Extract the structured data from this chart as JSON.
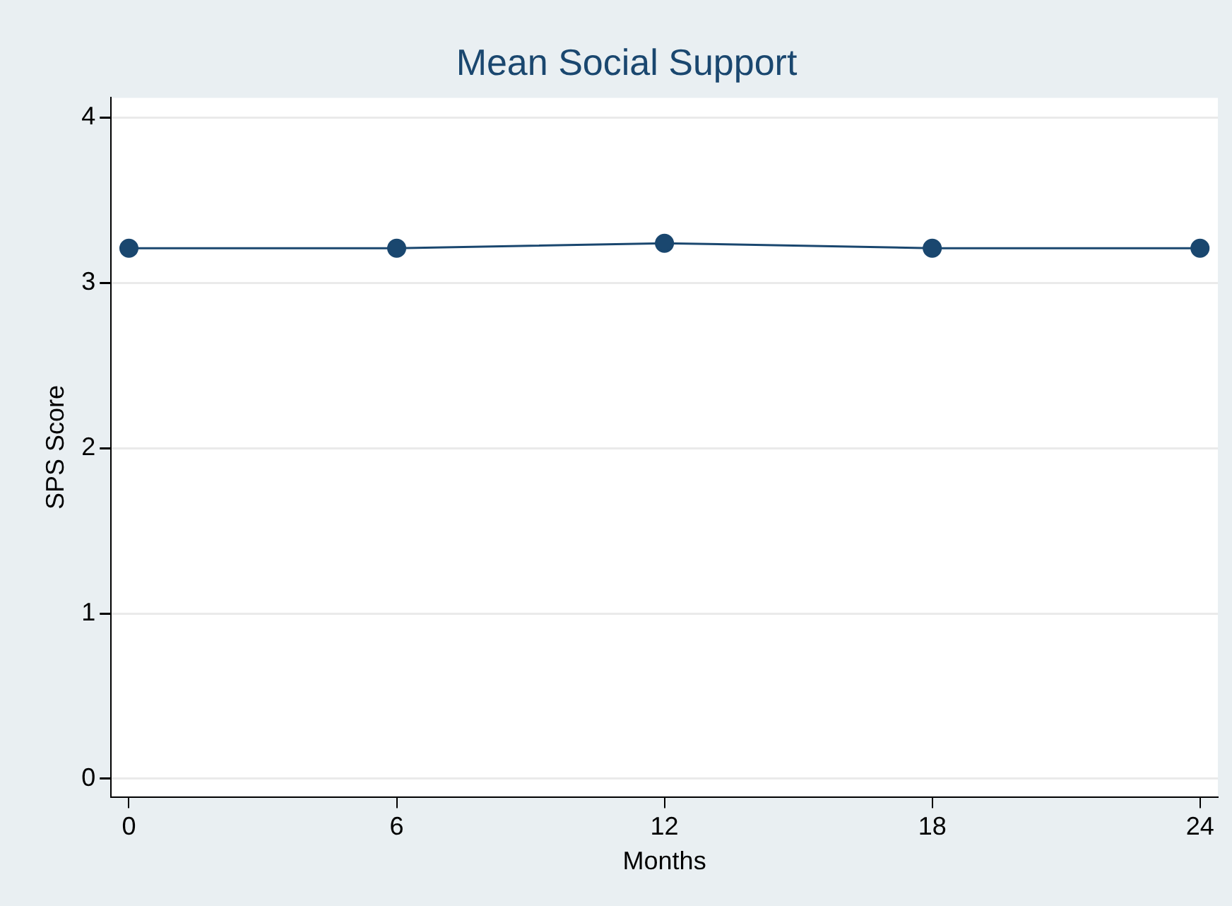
{
  "chart_data": {
    "type": "line",
    "title": "Mean Social Support",
    "xlabel": "Months",
    "ylabel": "SPS Score",
    "x": [
      0,
      6,
      12,
      18,
      24
    ],
    "series": [
      {
        "color": "#1a476f",
        "values": [
          3.21,
          3.21,
          3.24,
          3.21,
          3.21
        ]
      }
    ],
    "xlim": [
      -0.4,
      24.4
    ],
    "xticks": [
      0,
      6,
      12,
      18,
      24
    ],
    "ylim": [
      -0.11,
      4.12
    ],
    "yticks": [
      0,
      1,
      2,
      3,
      4
    ],
    "grid": "y",
    "legend": false,
    "marker": "circle",
    "line_style": "solid"
  }
}
